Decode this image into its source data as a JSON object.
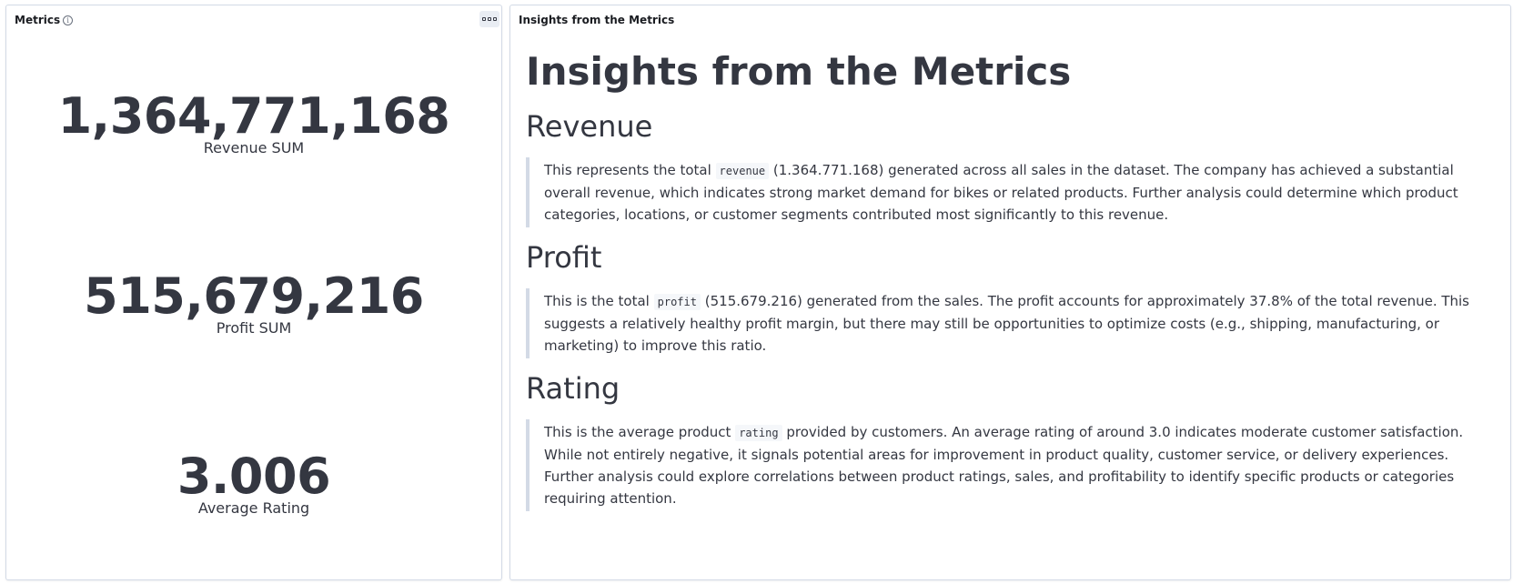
{
  "metrics_panel": {
    "title": "Metrics",
    "options_icon": "ellipsis-box-icon",
    "info_icon": "info-icon",
    "items": [
      {
        "value": "1,364,771,168",
        "label": "Revenue SUM"
      },
      {
        "value": "515,679,216",
        "label": "Profit SUM"
      },
      {
        "value": "3.006",
        "label": "Average Rating"
      }
    ]
  },
  "insights_panel": {
    "title": "Insights from the Metrics",
    "heading": "Insights from the Metrics",
    "sections": [
      {
        "heading": "Revenue",
        "text_before": "This represents the total ",
        "code": "revenue",
        "text_after": " (1.364.771.168) generated across all sales in the dataset. The company has achieved a substantial overall revenue, which indicates strong market demand for bikes or related products. Further analysis could determine which product categories, locations, or customer segments contributed most significantly to this revenue."
      },
      {
        "heading": "Profit",
        "text_before": "This is the total ",
        "code": "profit",
        "text_after": " (515.679.216) generated from the sales. The profit accounts for approximately 37.8% of the total revenue. This suggests a relatively healthy profit margin, but there may still be opportunities to optimize costs (e.g., shipping, manufacturing, or marketing) to improve this ratio."
      },
      {
        "heading": "Rating",
        "text_before": "This is the average product ",
        "code": "rating",
        "text_after": " provided by customers. An average rating of around 3.0 indicates moderate customer satisfaction. While not entirely negative, it signals potential areas for improvement in product quality, customer service, or delivery experiences. Further analysis could explore correlations between product ratings, sales, and profitability to identify specific products or categories requiring attention."
      }
    ]
  },
  "colors": {
    "text": "#343741",
    "border": "#d3dae6",
    "code_bg": "#f5f7fa"
  }
}
